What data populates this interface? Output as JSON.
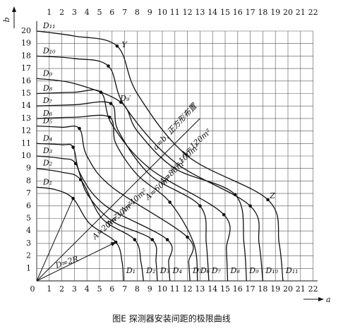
{
  "chart_data": {
    "type": "line",
    "caption": "图E 探测器安装间距的极限曲线",
    "xlabel": "a",
    "ylabel": "b",
    "xlim": [
      0,
      22
    ],
    "ylim": [
      0,
      20
    ],
    "xticks": [
      0,
      1,
      2,
      3,
      4,
      5,
      6,
      7,
      8,
      9,
      10,
      11,
      12,
      13,
      14,
      15,
      16,
      17,
      18,
      19,
      20,
      21,
      22
    ],
    "yticks": [
      1,
      2,
      3,
      4,
      5,
      6,
      7,
      8,
      9,
      10,
      11,
      12,
      13,
      14,
      15,
      16,
      17,
      18,
      19,
      20
    ],
    "grid": true,
    "series": [
      {
        "name": "D₁",
        "color": "#111",
        "x": [
          0,
          1.5,
          2.9,
          4.2,
          6.3,
          6.8,
          6.9
        ],
        "values": [
          7.5,
          7.3,
          6.6,
          4.6,
          3.1,
          1.5,
          0
        ],
        "markers": [
          false,
          false,
          true,
          false,
          true,
          false,
          false
        ]
      },
      {
        "name": "D₂",
        "color": "#111",
        "x": [
          0,
          2,
          3.5,
          5.2,
          7.8,
          8.3,
          8.5
        ],
        "values": [
          9,
          8.7,
          8.1,
          5.0,
          3.3,
          1.5,
          0
        ],
        "markers": [
          false,
          false,
          true,
          false,
          true,
          false,
          false
        ]
      },
      {
        "name": "D₃",
        "color": "#111",
        "x": [
          0,
          2,
          3.1,
          4,
          6,
          9.2,
          9.5,
          9.6
        ],
        "values": [
          10,
          9.8,
          9.4,
          7,
          4.8,
          3.3,
          1.5,
          0
        ],
        "markers": [
          false,
          false,
          true,
          false,
          false,
          true,
          false,
          false
        ]
      },
      {
        "name": "D₄",
        "color": "#111",
        "x": [
          0,
          2,
          2.9,
          3.5,
          5.5,
          10.4,
          10.5,
          10.6
        ],
        "values": [
          11,
          10.9,
          10.7,
          8.5,
          6,
          3.3,
          1.5,
          0
        ],
        "markers": [
          false,
          false,
          true,
          false,
          false,
          true,
          false,
          false
        ]
      },
      {
        "name": "D₅",
        "color": "#111",
        "x": [
          0,
          2,
          3.4,
          4,
          6,
          12,
          12.1,
          12.2
        ],
        "values": [
          12.4,
          12.3,
          12.2,
          10,
          7.5,
          3.5,
          1.5,
          0
        ],
        "markers": [
          false,
          false,
          true,
          false,
          false,
          true,
          false,
          false
        ]
      },
      {
        "name": "D₆",
        "color": "#111",
        "x": [
          0,
          3,
          5.8,
          6.3,
          8,
          10.6,
          12.5,
          12.8
        ],
        "values": [
          13,
          13.1,
          13.1,
          11,
          8.5,
          6.3,
          3,
          0
        ],
        "markers": [
          false,
          false,
          true,
          false,
          false,
          true,
          false,
          false
        ]
      },
      {
        "name": "D₇",
        "color": "#111",
        "x": [
          0,
          3,
          5.9,
          6.5,
          9,
          13,
          13.5,
          13.7
        ],
        "values": [
          14,
          14.1,
          14.2,
          12,
          8.5,
          6,
          3,
          0
        ],
        "markers": [
          false,
          false,
          true,
          false,
          false,
          true,
          false,
          false
        ]
      },
      {
        "name": "D₈",
        "color": "#111",
        "x": [
          0,
          3,
          5.1,
          6,
          9,
          14.9,
          15.1,
          15.2
        ],
        "values": [
          15,
          15.1,
          15.1,
          12.5,
          9,
          5.3,
          2.5,
          0
        ],
        "markers": [
          false,
          false,
          true,
          false,
          false,
          true,
          false,
          false
        ]
      },
      {
        "name": "D₉",
        "color": "#111",
        "x": [
          0,
          3,
          6.7,
          8,
          11,
          15.8,
          16.5,
          16.7
        ],
        "values": [
          16.2,
          15.8,
          14.3,
          12,
          9,
          6.9,
          3,
          0
        ],
        "markers": [
          false,
          false,
          true,
          false,
          false,
          true,
          false,
          false
        ]
      },
      {
        "name": "D₁₀",
        "color": "#111",
        "x": [
          0,
          3,
          5.7,
          7,
          11,
          17,
          17.7,
          18
        ],
        "values": [
          18,
          17.8,
          17.2,
          14,
          9.5,
          6,
          3,
          0
        ],
        "markers": [
          false,
          false,
          true,
          false,
          false,
          true,
          false,
          false
        ]
      },
      {
        "name": "D₁₁",
        "color": "#111",
        "x": [
          0,
          3,
          6.4,
          8,
          12,
          18.4,
          19.3,
          19.6
        ],
        "values": [
          20,
          19.6,
          18.8,
          15,
          10,
          6.5,
          3,
          0
        ],
        "markers": [
          false,
          false,
          true,
          false,
          false,
          true,
          false,
          false
        ]
      }
    ],
    "annotations": [
      "A=20m²",
      "A=30m²",
      "A=40m²",
      "A=60m²",
      "A=80m²",
      "A=100m²",
      "A=120m²",
      "a=b, 正方形布置",
      "D=2R",
      "Y",
      "Z",
      "D₉′"
    ]
  }
}
